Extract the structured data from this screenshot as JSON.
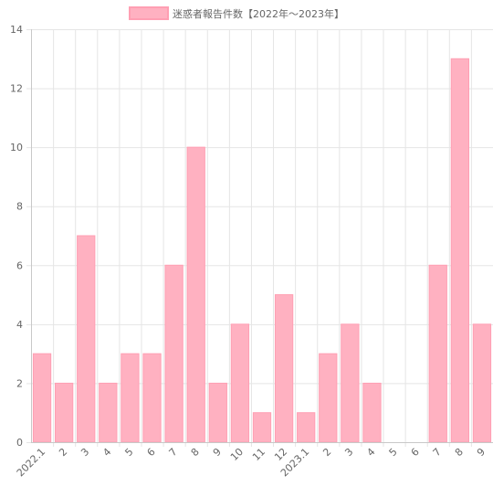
{
  "chart_data": {
    "type": "bar",
    "title": "",
    "xlabel": "",
    "ylabel": "",
    "legend": {
      "label": "迷惑者報告件数【2022年～2023年】",
      "position": "top-center"
    },
    "categories": [
      "2022.1",
      "2",
      "3",
      "4",
      "5",
      "6",
      "7",
      "8",
      "9",
      "10",
      "11",
      "12",
      "2023.1",
      "2",
      "3",
      "4",
      "5",
      "6",
      "7",
      "8",
      "9"
    ],
    "series": [
      {
        "name": "迷惑者報告件数【2022年～2023年】",
        "values": [
          3,
          2,
          7,
          2,
          3,
          3,
          6,
          10,
          2,
          4,
          1,
          5,
          1,
          3,
          4,
          2,
          0,
          0,
          6,
          13,
          4
        ]
      }
    ],
    "ylim": [
      0,
      14
    ],
    "yticks": [
      0,
      2,
      4,
      6,
      8,
      10,
      12,
      14
    ],
    "grid": true,
    "colors": {
      "bar_fill": "#ffb1c1",
      "bar_border": "#ff9fb3",
      "grid": "#e5e5e5",
      "axis": "#c8c8c8",
      "tick_text": "#666666"
    }
  }
}
